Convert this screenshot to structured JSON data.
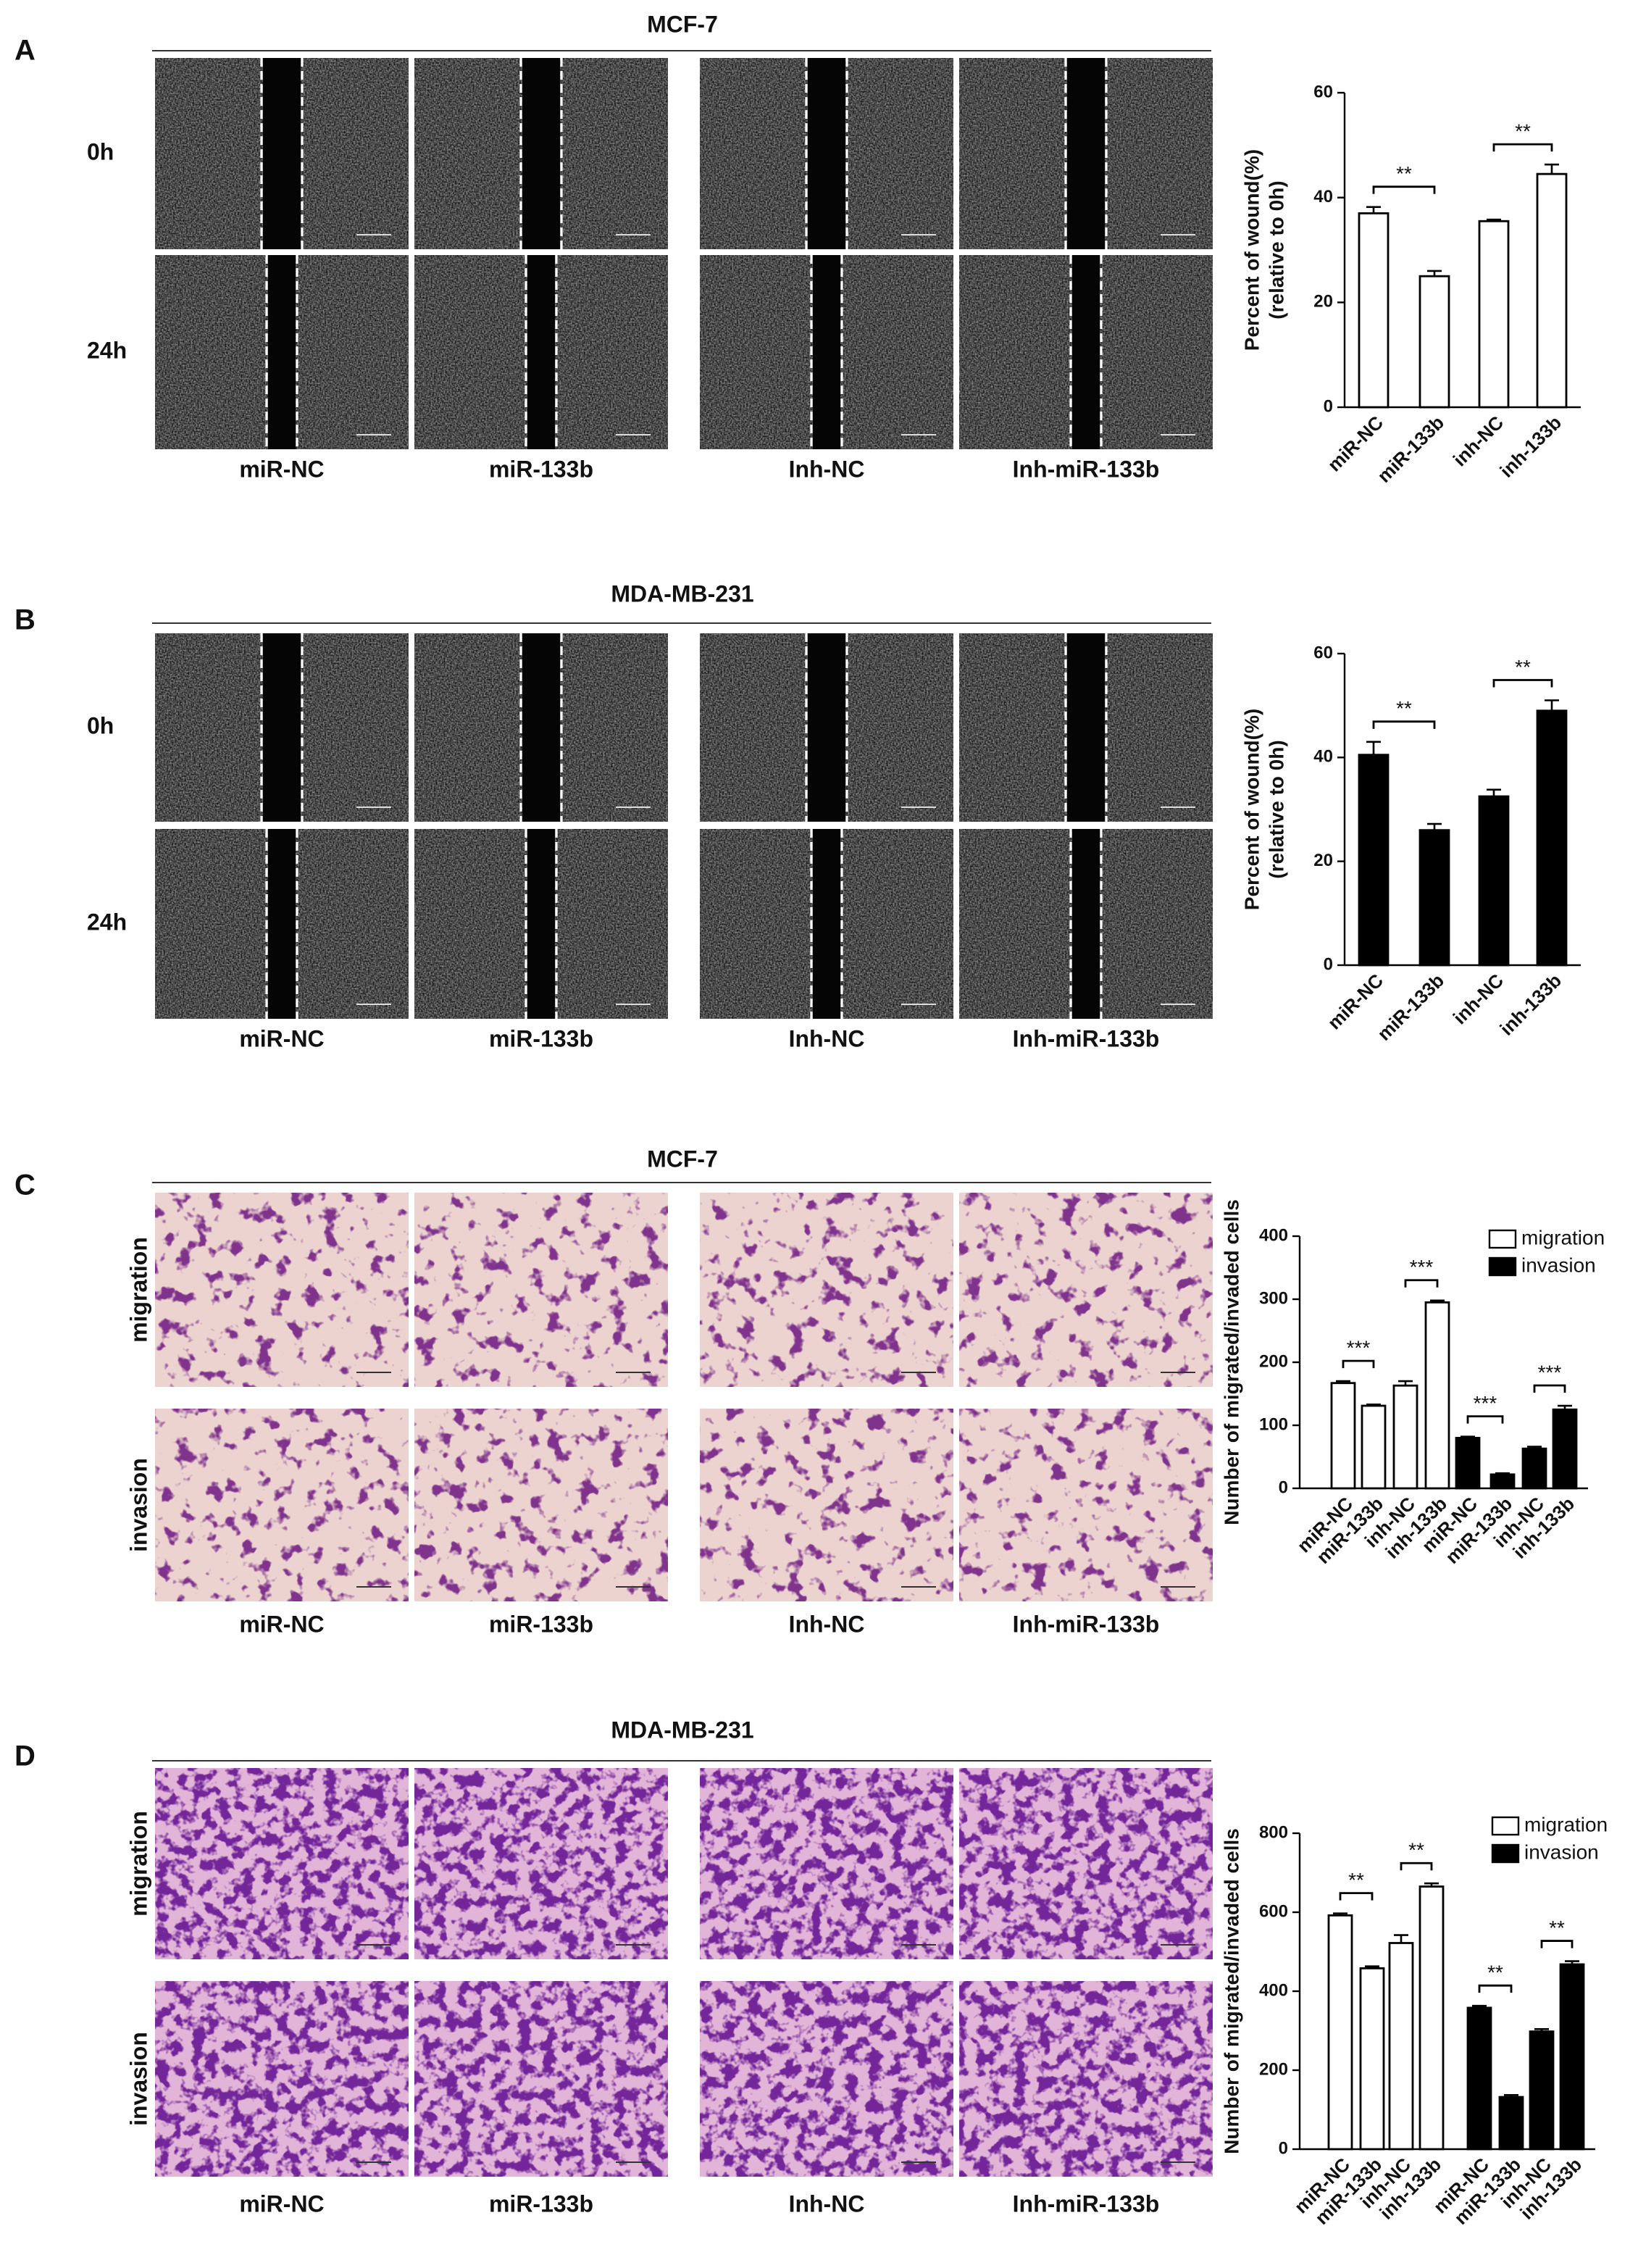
{
  "panels": [
    {
      "letter": "A",
      "cell_line": "MCF-7",
      "rows": [
        "0h",
        "24h"
      ],
      "columns": [
        "miR-NC",
        "miR-133b",
        "Inh-NC",
        "Inh-miR-133b"
      ]
    },
    {
      "letter": "B",
      "cell_line": "MDA-MB-231",
      "rows": [
        "0h",
        "24h"
      ],
      "columns": [
        "miR-NC",
        "miR-133b",
        "Inh-NC",
        "Inh-miR-133b"
      ]
    },
    {
      "letter": "C",
      "cell_line": "MCF-7",
      "rows": [
        "migration",
        "invasion"
      ],
      "columns": [
        "miR-NC",
        "miR-133b",
        "Inh-NC",
        "Inh-miR-133b"
      ]
    },
    {
      "letter": "D",
      "cell_line": "MDA-MB-231",
      "rows": [
        "migration",
        "invasion"
      ],
      "columns": [
        "miR-NC",
        "miR-133b",
        "Inh-NC",
        "Inh-miR-133b"
      ]
    }
  ],
  "chart_data": [
    {
      "type": "bar",
      "y_label": [
        "Percent of wound(%)",
        "(relative to 0h)"
      ],
      "categories": [
        "miR-NC",
        "miR-133b",
        "inh-NC",
        "inh-133b"
      ],
      "values": [
        37,
        25,
        35.5,
        44.5
      ],
      "errors": [
        1.2,
        1,
        0.3,
        1.8
      ],
      "color": "#ffffff",
      "ylim": [
        0,
        60
      ],
      "yticks": [
        0,
        20,
        40,
        60
      ],
      "annotations": [
        {
          "text": "**",
          "between": [
            0,
            1
          ]
        },
        {
          "text": "**",
          "between": [
            2,
            3
          ]
        }
      ]
    },
    {
      "type": "bar",
      "y_label": [
        "Percent of wound(%)",
        "(relative to 0h)"
      ],
      "categories": [
        "miR-NC",
        "miR-133b",
        "inh-NC",
        "inh-133b"
      ],
      "values": [
        40.5,
        26,
        32.5,
        49
      ],
      "errors": [
        2.5,
        1.2,
        1.3,
        2
      ],
      "color": "#000000",
      "ylim": [
        0,
        60
      ],
      "yticks": [
        0,
        20,
        40,
        60
      ],
      "annotations": [
        {
          "text": "**",
          "between": [
            0,
            1
          ]
        },
        {
          "text": "**",
          "between": [
            2,
            3
          ]
        }
      ]
    },
    {
      "type": "bar",
      "y_label": [
        "Number of migrated/invaded cells"
      ],
      "categories": [
        "miR-NC",
        "miR-133b",
        "inh-NC",
        "inh-133b",
        "miR-NC",
        "miR-133b",
        "inh-NC",
        "inh-133b"
      ],
      "series": [
        {
          "name": "migration",
          "color": "#ffffff",
          "values": [
            167,
            131,
            163,
            295,
            null,
            null,
            null,
            null
          ],
          "errors": [
            3,
            2,
            7,
            3,
            null,
            null,
            null,
            null
          ]
        },
        {
          "name": "invasion",
          "color": "#000000",
          "values": [
            null,
            null,
            null,
            null,
            80,
            22,
            63,
            125
          ],
          "errors": [
            null,
            null,
            null,
            null,
            2,
            2,
            3,
            6
          ]
        }
      ],
      "ylim": [
        0,
        400
      ],
      "yticks": [
        0,
        100,
        200,
        300,
        400
      ],
      "legend": "upper right",
      "annotations": [
        {
          "text": "***",
          "between": [
            0,
            1
          ]
        },
        {
          "text": "***",
          "between": [
            2,
            3
          ]
        },
        {
          "text": "***",
          "between": [
            4,
            5
          ]
        },
        {
          "text": "***",
          "between": [
            6,
            7
          ]
        }
      ]
    },
    {
      "type": "bar",
      "y_label": [
        "Number of migrated/invaded cells"
      ],
      "categories": [
        "miR-NC",
        "miR-133b",
        "inh-NC",
        "inh-133b",
        "miR-NC",
        "miR-133b",
        "inh-NC",
        "inh-133b"
      ],
      "series": [
        {
          "name": "migration",
          "color": "#ffffff",
          "values": [
            592,
            458,
            522,
            665,
            null,
            null,
            null,
            null
          ],
          "errors": [
            5,
            5,
            20,
            8,
            null,
            null,
            null,
            null
          ]
        },
        {
          "name": "invasion",
          "color": "#000000",
          "values": [
            null,
            null,
            null,
            null,
            358,
            132,
            298,
            468
          ],
          "errors": [
            null,
            null,
            null,
            null,
            5,
            5,
            6,
            8
          ]
        }
      ],
      "ylim": [
        0,
        800
      ],
      "yticks": [
        0,
        200,
        400,
        600,
        800
      ],
      "legend": "upper right",
      "annotations": [
        {
          "text": "**",
          "between": [
            0,
            1
          ]
        },
        {
          "text": "**",
          "between": [
            2,
            3
          ]
        },
        {
          "text": "**",
          "between": [
            4,
            5
          ]
        },
        {
          "text": "**",
          "between": [
            6,
            7
          ]
        }
      ]
    }
  ]
}
